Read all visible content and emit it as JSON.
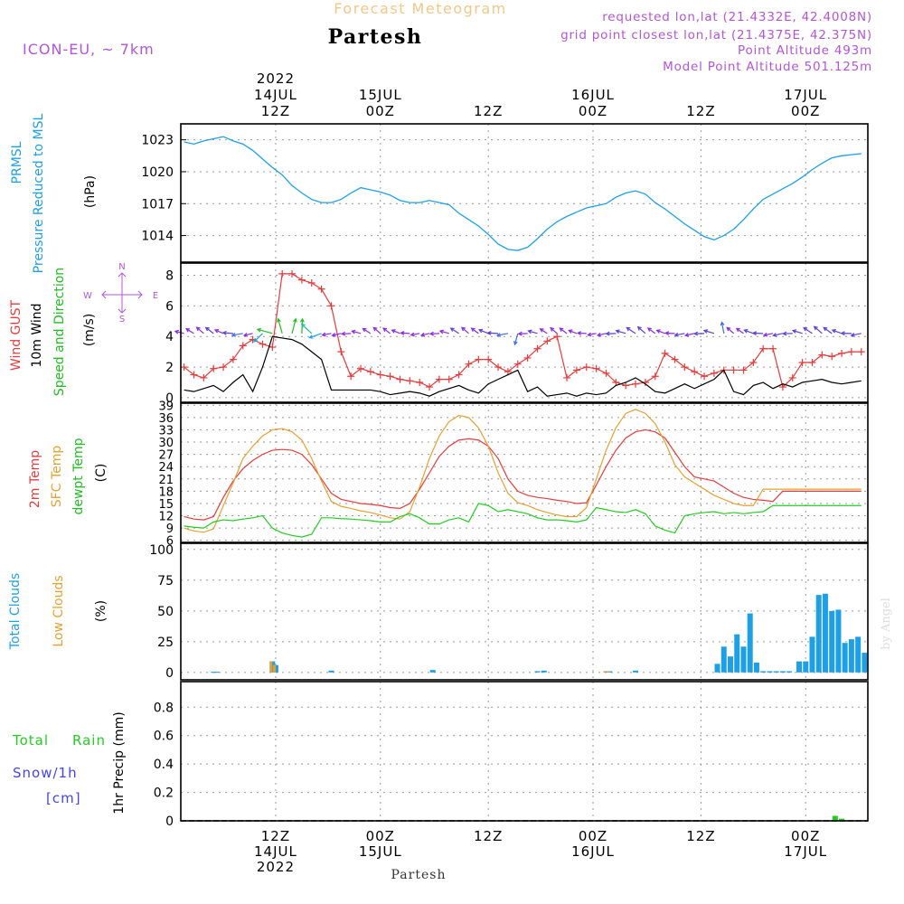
{
  "header": {
    "subtitle": "Forecast Meteogram",
    "location": "Partesh",
    "model": "ICON-EU, ~ 7km",
    "requested": "requested lon,lat (21.4332E, 42.4008N)",
    "grid_point": "grid point closest lon,lat (21.4375E, 42.375N)",
    "point_altitude": "Point Altitude 493m",
    "model_altitude": "Model Point Altitude 501.125m",
    "footer_location": "Partesh",
    "watermark": "by Angel"
  },
  "colors": {
    "pressure": "#1ea0e6",
    "gust": "#e63c3c",
    "wind": "#000000",
    "dir": "#22bb22",
    "temp2m": "#e63c3c",
    "sfc": "#e6a030",
    "dewpt": "#22cc22",
    "clouds_total": "#1ea0e6",
    "clouds_low": "#e6a030",
    "rain": "#22cc22",
    "snow": "#4444ee",
    "purple": "#b455d8"
  },
  "time_axis": {
    "top_labels": [
      {
        "id": "t-14jul12z",
        "lines": [
          "2022",
          "14JUL",
          "12Z"
        ]
      },
      {
        "id": "t-15jul00z",
        "lines": [
          "15JUL",
          "00Z"
        ]
      },
      {
        "id": "t-15jul12z",
        "lines": [
          "12Z"
        ]
      },
      {
        "id": "t-16jul00z",
        "lines": [
          "16JUL",
          "00Z"
        ]
      },
      {
        "id": "t-16jul12z",
        "lines": [
          "12Z"
        ]
      },
      {
        "id": "t-17jul00z",
        "lines": [
          "17JUL",
          "00Z"
        ]
      }
    ],
    "bottom_labels": [
      {
        "id": "b-14jul12z",
        "lines": [
          "12Z",
          "14JUL",
          "2022"
        ]
      },
      {
        "id": "b-15jul00z",
        "lines": [
          "00Z",
          "15JUL"
        ]
      },
      {
        "id": "b-15jul12z",
        "lines": [
          "12Z"
        ]
      },
      {
        "id": "b-16jul00z",
        "lines": [
          "00Z",
          "16JUL"
        ]
      },
      {
        "id": "b-16jul12z",
        "lines": [
          "12Z"
        ]
      },
      {
        "id": "b-17jul00z",
        "lines": [
          "00Z",
          "17JUL"
        ]
      }
    ]
  },
  "panels": {
    "pressure": {
      "labels": [
        "PRMSL",
        "Pressure Reduced to MSL",
        "(hPa)"
      ],
      "ticks": [
        "1023",
        "1020",
        "1017",
        "1014"
      ]
    },
    "wind": {
      "labels": [
        "Wind GUST",
        "10m Wind",
        "Speed and Direction",
        "(m/s)"
      ],
      "ticks": [
        "8",
        "6",
        "4",
        "2",
        "0"
      ],
      "compass": {
        "n": "N",
        "s": "S",
        "w": "W",
        "e": "E"
      }
    },
    "temp": {
      "labels": [
        "2m Temp",
        "SFC Temp",
        "dewpt Temp",
        "(C)"
      ],
      "ticks": [
        "39",
        "36",
        "33",
        "30",
        "27",
        "24",
        "21",
        "18",
        "15",
        "12",
        "9",
        "6"
      ]
    },
    "clouds": {
      "labels": [
        "Total Clouds",
        "Low Clouds",
        "(%)"
      ],
      "ticks": [
        "100",
        "75",
        "50",
        "25",
        "0"
      ]
    },
    "precip": {
      "labels": [
        "Total",
        "Rain",
        "Snow/1h",
        "[cm]",
        "1hr Precip (mm)"
      ],
      "ticks": [
        "0.8",
        "0.6",
        "0.4",
        "0.2",
        "0"
      ]
    }
  },
  "chart_data": [
    {
      "type": "line",
      "title": "PRMSL Pressure Reduced to MSL",
      "ylabel": "hPa",
      "ylim": [
        1011.5,
        1024.5
      ],
      "x": [
        -19,
        -16,
        -13,
        -10,
        -7,
        -4,
        -1,
        2,
        5,
        8,
        11,
        14,
        17,
        20,
        23,
        26,
        29,
        32,
        35,
        38,
        41,
        44,
        47,
        50,
        53,
        56,
        59,
        62,
        65,
        68,
        71,
        74,
        77,
        80,
        83,
        86,
        89,
        92,
        95,
        98,
        101,
        104,
        107,
        110,
        113,
        116,
        119,
        122,
        125,
        128,
        131,
        134,
        137,
        140,
        143,
        146,
        149,
        152,
        155,
        158,
        161,
        164,
        167,
        170,
        173,
        176,
        179,
        182,
        185,
        188
      ],
      "values": [
        1022.8,
        1022.6,
        1022.9,
        1023.1,
        1023.3,
        1022.9,
        1022.6,
        1022.0,
        1021.2,
        1020.4,
        1019.7,
        1018.7,
        1018.0,
        1017.4,
        1017.1,
        1017.1,
        1017.4,
        1018.0,
        1018.5,
        1018.3,
        1018.1,
        1017.8,
        1017.3,
        1017.1,
        1017.1,
        1017.3,
        1017.1,
        1016.9,
        1016.1,
        1015.5,
        1014.9,
        1014.1,
        1013.2,
        1012.7,
        1012.6,
        1012.9,
        1013.7,
        1014.6,
        1015.3,
        1015.8,
        1016.2,
        1016.6,
        1016.8,
        1017.0,
        1017.6,
        1018.0,
        1018.2,
        1017.9,
        1017.1,
        1016.5,
        1015.8,
        1015.1,
        1014.5,
        1013.9,
        1013.6,
        1014.0,
        1014.6,
        1015.5,
        1016.5,
        1017.4,
        1017.9,
        1018.4,
        1018.9,
        1019.5,
        1020.2,
        1020.8,
        1021.3,
        1021.5,
        1021.6,
        1021.7
      ]
    },
    {
      "type": "line",
      "title": "Wind GUST / 10m Wind Speed",
      "ylabel": "m/s",
      "ylim": [
        -0.3,
        8.8
      ],
      "gust": {
        "x": [
          -19,
          -16,
          -13,
          -10,
          -7,
          -4,
          -1,
          2,
          5,
          8,
          11,
          14,
          17,
          20,
          23,
          26,
          29,
          32,
          35,
          38,
          41,
          44,
          47,
          50,
          53,
          56,
          59,
          62,
          65,
          68,
          71,
          74,
          77,
          80,
          83,
          86,
          89,
          92,
          95,
          98,
          101,
          104,
          107,
          110,
          113,
          116,
          119,
          122,
          125,
          128,
          131,
          134,
          137,
          140,
          143,
          146,
          149,
          152,
          155,
          158,
          161,
          164,
          167,
          170,
          173,
          176,
          179,
          182,
          185,
          188
        ],
        "values": [
          2.0,
          1.5,
          1.3,
          1.9,
          2.0,
          2.5,
          3.4,
          3.8,
          3.5,
          3.3,
          8.1,
          8.1,
          7.7,
          7.5,
          7.1,
          6.0,
          3.0,
          1.4,
          1.9,
          1.7,
          1.5,
          1.4,
          1.2,
          1.1,
          1.0,
          0.7,
          1.2,
          1.2,
          1.5,
          2.2,
          2.5,
          2.5,
          2.0,
          1.7,
          2.2,
          2.6,
          3.2,
          3.7,
          4.0,
          1.3,
          1.8,
          2.0,
          1.9,
          1.6,
          1.0,
          0.8,
          0.9,
          1.0,
          1.4,
          2.9,
          2.5,
          2.0,
          1.7,
          1.4,
          1.6,
          1.8,
          1.8,
          1.8,
          2.3,
          3.2,
          3.2,
          0.7,
          1.3,
          2.3,
          2.3,
          2.8,
          2.7,
          2.9,
          3.0,
          3.0
        ]
      },
      "wind": {
        "x": [
          -19,
          -16,
          -13,
          -10,
          -7,
          -4,
          -1,
          2,
          5,
          8,
          11,
          14,
          17,
          20,
          23,
          26,
          29,
          32,
          35,
          38,
          41,
          44,
          47,
          50,
          53,
          56,
          59,
          62,
          65,
          68,
          71,
          74,
          77,
          80,
          83,
          86,
          89,
          92,
          95,
          98,
          101,
          104,
          107,
          110,
          113,
          116,
          119,
          122,
          125,
          128,
          131,
          134,
          137,
          140,
          143,
          146,
          149,
          152,
          155,
          158,
          161,
          164,
          167,
          170,
          173,
          176,
          179,
          182,
          185,
          188
        ],
        "values": [
          0.5,
          0.4,
          0.6,
          0.8,
          0.4,
          1.0,
          1.5,
          0.4,
          2.0,
          4.0,
          3.9,
          3.8,
          3.5,
          3.0,
          2.5,
          0.5,
          0.5,
          0.5,
          0.5,
          0.5,
          0.4,
          0.2,
          0.3,
          0.4,
          0.3,
          0.1,
          0.4,
          0.6,
          0.8,
          0.5,
          0.3,
          0.9,
          1.2,
          1.5,
          1.8,
          0.4,
          0.7,
          0.1,
          0.2,
          0.3,
          0.1,
          0.3,
          0.2,
          0.3,
          0.8,
          1.0,
          1.3,
          0.9,
          0.4,
          0.3,
          0.6,
          0.9,
          0.6,
          0.9,
          1.2,
          1.8,
          0.4,
          0.2,
          0.8,
          1.0,
          0.6,
          0.9,
          0.7,
          1.0,
          1.1,
          1.2,
          1.0,
          0.9,
          1.0,
          1.1
        ]
      },
      "direction_arrows_y": 4.2
    },
    {
      "type": "line",
      "title": "2m / SFC / dewpoint Temperature",
      "ylabel": "C",
      "ylim": [
        5.5,
        39.5
      ],
      "yticks": [
        6,
        9,
        12,
        15,
        18,
        21,
        24,
        27,
        30,
        33,
        36,
        39
      ],
      "x": [
        -19,
        -16,
        -13,
        -10,
        -7,
        -4,
        -1,
        2,
        5,
        8,
        11,
        14,
        17,
        20,
        23,
        26,
        29,
        32,
        35,
        38,
        41,
        44,
        47,
        50,
        53,
        56,
        59,
        62,
        65,
        68,
        71,
        74,
        77,
        80,
        83,
        86,
        89,
        92,
        95,
        98,
        101,
        104,
        107,
        110,
        113,
        116,
        119,
        122,
        125,
        128,
        131,
        134,
        137,
        140,
        143,
        146,
        149,
        152,
        155,
        158,
        161,
        164,
        167,
        170,
        173,
        176,
        179,
        182,
        185,
        188
      ],
      "series": [
        {
          "name": "2m Temp",
          "values": [
            11.8,
            11.2,
            11.0,
            11.8,
            16.5,
            20.5,
            23.5,
            25.5,
            27.0,
            28.0,
            28.2,
            28.0,
            27.0,
            24.5,
            21.0,
            17.5,
            16.0,
            15.5,
            15.0,
            14.8,
            14.5,
            14.0,
            13.8,
            15.0,
            18.5,
            22.5,
            26.5,
            29.0,
            30.5,
            30.8,
            30.5,
            29.0,
            26.0,
            21.0,
            18.0,
            17.0,
            16.5,
            16.2,
            15.8,
            15.5,
            15.0,
            15.2,
            19.5,
            24.0,
            28.0,
            31.0,
            32.5,
            33.0,
            32.5,
            31.0,
            27.5,
            24.0,
            21.5,
            21.0,
            20.5,
            19.0,
            17.5,
            16.5,
            16.0,
            15.8,
            15.5,
            18.0,
            18.0,
            18.0,
            18.0,
            18.0,
            18.0,
            18.0,
            18.0,
            18.0
          ]
        },
        {
          "name": "SFC Temp",
          "values": [
            9.0,
            8.3,
            8.0,
            8.8,
            14.5,
            20.0,
            26.0,
            29.0,
            31.5,
            33.0,
            33.3,
            32.5,
            30.5,
            26.0,
            20.5,
            15.5,
            14.3,
            13.8,
            13.2,
            12.8,
            12.2,
            11.5,
            11.2,
            13.0,
            19.0,
            26.0,
            31.5,
            35.0,
            36.5,
            36.0,
            33.5,
            29.0,
            22.5,
            17.5,
            15.2,
            14.5,
            13.5,
            12.8,
            12.2,
            11.8,
            11.8,
            14.0,
            21.0,
            28.0,
            33.5,
            37.0,
            38.0,
            37.0,
            34.5,
            30.0,
            24.5,
            21.5,
            20.0,
            18.5,
            17.0,
            16.0,
            15.0,
            14.5,
            14.5,
            18.5,
            18.5,
            18.5,
            18.5,
            18.5,
            18.5,
            18.5,
            18.5,
            18.5,
            18.5,
            18.5
          ]
        },
        {
          "name": "dewpt Temp",
          "values": [
            9.5,
            9.2,
            9.0,
            10.5,
            11.0,
            10.8,
            11.2,
            11.5,
            12.0,
            9.0,
            7.8,
            7.2,
            6.8,
            7.5,
            11.5,
            11.5,
            11.3,
            11.2,
            11.0,
            10.8,
            10.5,
            10.5,
            11.8,
            12.5,
            11.5,
            10.0,
            10.0,
            11.0,
            11.5,
            10.5,
            15.0,
            14.5,
            13.0,
            13.5,
            13.0,
            12.5,
            11.5,
            11.0,
            11.0,
            10.8,
            10.5,
            11.0,
            14.0,
            13.5,
            13.0,
            12.8,
            13.5,
            12.5,
            9.5,
            8.5,
            7.8,
            12.0,
            12.5,
            12.8,
            13.0,
            12.5,
            12.8,
            12.5,
            12.8,
            13.0,
            14.5,
            14.5,
            14.5,
            14.5,
            14.5,
            14.5,
            14.5,
            14.5,
            14.5,
            14.5
          ]
        }
      ]
    },
    {
      "type": "bar",
      "title": "Total Clouds / Low Clouds",
      "ylabel": "%",
      "ylim": [
        -6,
        105
      ],
      "yticks": [
        0,
        25,
        50,
        75,
        100
      ],
      "total": {
        "x": [
          -10,
          -9,
          8,
          9,
          26,
          57,
          89,
          91,
          110,
          111,
          119,
          144,
          146,
          148,
          150,
          152,
          154,
          156,
          158,
          160,
          162,
          164,
          166,
          169,
          171,
          173,
          175,
          177,
          179,
          181,
          183,
          185,
          187,
          189
        ],
        "values": [
          0.5,
          0.5,
          9,
          6,
          1.5,
          2,
          1,
          1.5,
          1,
          1,
          1.5,
          7,
          21,
          13,
          31,
          21,
          48,
          8,
          1,
          1,
          1,
          1,
          1,
          9,
          9,
          29,
          63,
          64,
          50,
          51,
          24,
          27,
          29,
          16
        ]
      },
      "low": {
        "x": [
          8,
          9,
          110,
          111
        ],
        "values": [
          9,
          6,
          1,
          1
        ]
      }
    },
    {
      "type": "bar",
      "title": "1hr Precip",
      "ylabel": "mm",
      "ylim": [
        0,
        0.98
      ],
      "yticks": [
        0,
        0.2,
        0.4,
        0.6,
        0.8
      ],
      "total": {
        "x": [
          180,
          182
        ],
        "values": [
          0.035,
          0.015
        ]
      },
      "snow": {
        "x": [],
        "values": []
      }
    }
  ]
}
